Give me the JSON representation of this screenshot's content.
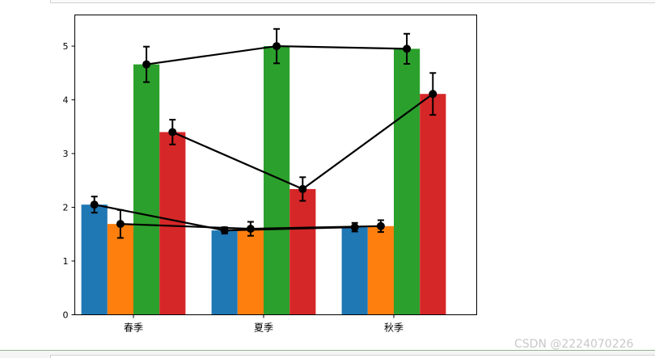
{
  "chart_data": {
    "type": "bar",
    "categories": [
      "春季",
      "夏季",
      "秋季"
    ],
    "series": [
      {
        "color": "#1f77b4",
        "values": [
          2.05,
          1.57,
          1.63
        ]
      },
      {
        "color": "#ff7f0e",
        "values": [
          1.69,
          1.6,
          1.65
        ]
      },
      {
        "color": "#2ca02c",
        "values": [
          4.66,
          5.0,
          4.95
        ]
      },
      {
        "color": "#d62728",
        "values": [
          3.4,
          2.34,
          4.11
        ]
      }
    ],
    "errorbars": [
      {
        "values": [
          2.05,
          1.57,
          1.63
        ],
        "errors": [
          0.15,
          0.06,
          0.08
        ]
      },
      {
        "values": [
          1.69,
          1.6,
          1.65
        ],
        "errors": [
          0.26,
          0.13,
          0.11
        ]
      },
      {
        "values": [
          4.66,
          5.0,
          4.95
        ],
        "errors": [
          0.33,
          0.32,
          0.28
        ]
      },
      {
        "values": [
          3.4,
          2.34,
          4.11
        ],
        "errors": [
          0.23,
          0.22,
          0.39
        ]
      }
    ],
    "line_color": "#000000",
    "ylim": [
      0,
      5.58
    ],
    "yticks": [
      0,
      1,
      2,
      3,
      4,
      5
    ],
    "grid": false
  },
  "watermark": "CSDN @2224070226"
}
